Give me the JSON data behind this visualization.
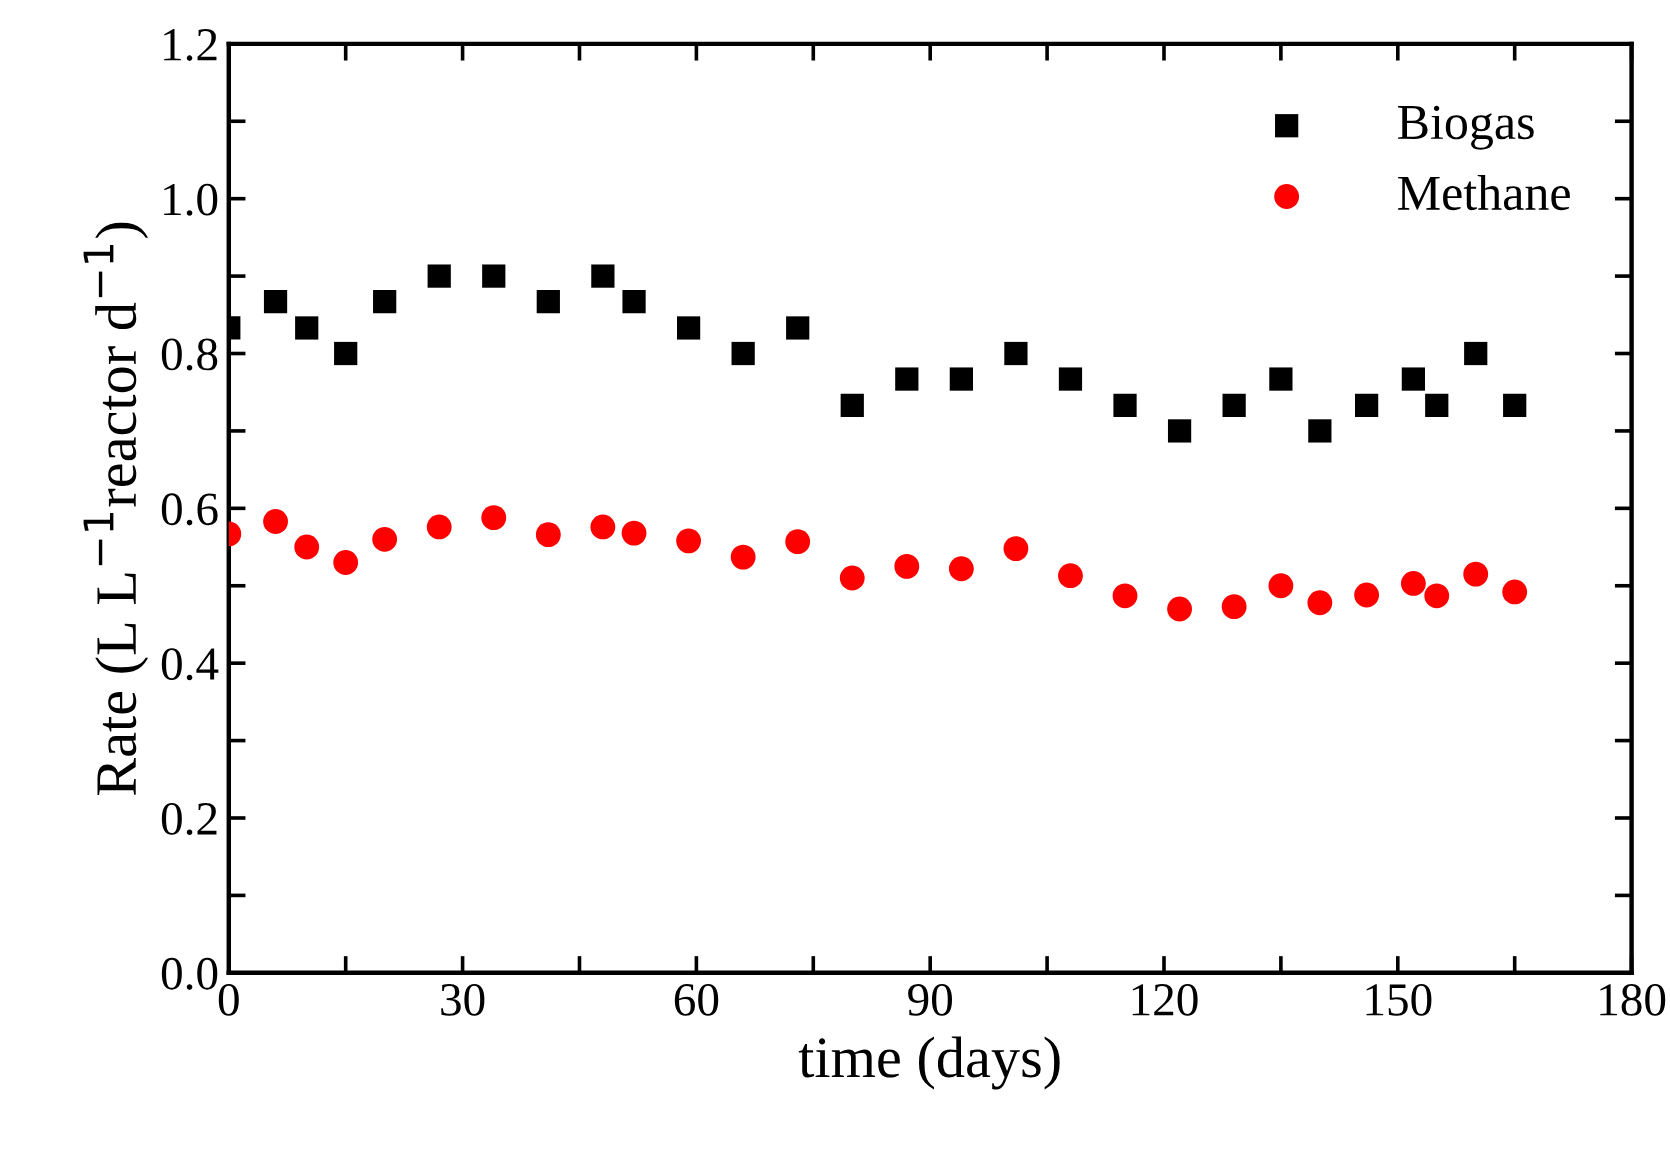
{
  "chart_data": {
    "type": "scatter",
    "xlabel": "time (days)",
    "ylabel": "Rate (L L$^{−1}$reactor d$^{−1}$)",
    "x": [
      0,
      6,
      10,
      15,
      20,
      27,
      34,
      41,
      48,
      52,
      59,
      66,
      73,
      80,
      87,
      94,
      101,
      108,
      115,
      122,
      129,
      135,
      140,
      146,
      152,
      155,
      160,
      165
    ],
    "series": [
      {
        "name": "Biogas",
        "color": "#000000",
        "marker": "square",
        "values": [
          0.833,
          0.867,
          0.833,
          0.8,
          0.867,
          0.9,
          0.9,
          0.867,
          0.9,
          0.867,
          0.833,
          0.8,
          0.833,
          0.733,
          0.767,
          0.767,
          0.8,
          0.767,
          0.733,
          0.7,
          0.733,
          0.767,
          0.7,
          0.733,
          0.767,
          0.733,
          0.8,
          0.733
        ]
      },
      {
        "name": "Methane",
        "color": "#ff0000",
        "marker": "circle",
        "values": [
          0.567,
          0.583,
          0.55,
          0.53,
          0.56,
          0.576,
          0.588,
          0.566,
          0.576,
          0.568,
          0.558,
          0.537,
          0.557,
          0.51,
          0.525,
          0.522,
          0.548,
          0.513,
          0.487,
          0.47,
          0.473,
          0.5,
          0.478,
          0.488,
          0.503,
          0.487,
          0.515,
          0.492
        ]
      }
    ],
    "xlim": [
      0,
      180
    ],
    "ylim": [
      0,
      1.2
    ],
    "xticks": [
      0,
      {
        "value": 15,
        "label": null
      },
      30,
      {
        "value": 45,
        "label": null
      },
      60,
      {
        "value": 75,
        "label": null
      },
      90,
      {
        "value": 105,
        "label": null
      },
      120,
      {
        "value": 135,
        "label": null
      },
      150,
      {
        "value": 165,
        "label": null
      },
      180
    ],
    "yticks": [
      "0.0",
      {
        "value": 0.1,
        "label": null
      },
      {
        "value": 0.2,
        "label": "0.2"
      },
      {
        "value": 0.3,
        "label": null
      },
      {
        "value": 0.4,
        "label": "0.4"
      },
      {
        "value": 0.5,
        "label": null
      },
      {
        "value": 0.6,
        "label": "0.6"
      },
      {
        "value": 0.7,
        "label": null
      },
      {
        "value": 0.8,
        "label": "0.8"
      },
      {
        "value": 0.9,
        "label": null
      },
      {
        "value": 1.0,
        "label": "1.0"
      },
      {
        "value": 1.1,
        "label": null
      },
      {
        "value": 1.2,
        "label": "1.2"
      }
    ],
    "grid": false,
    "legend": "top right"
  }
}
